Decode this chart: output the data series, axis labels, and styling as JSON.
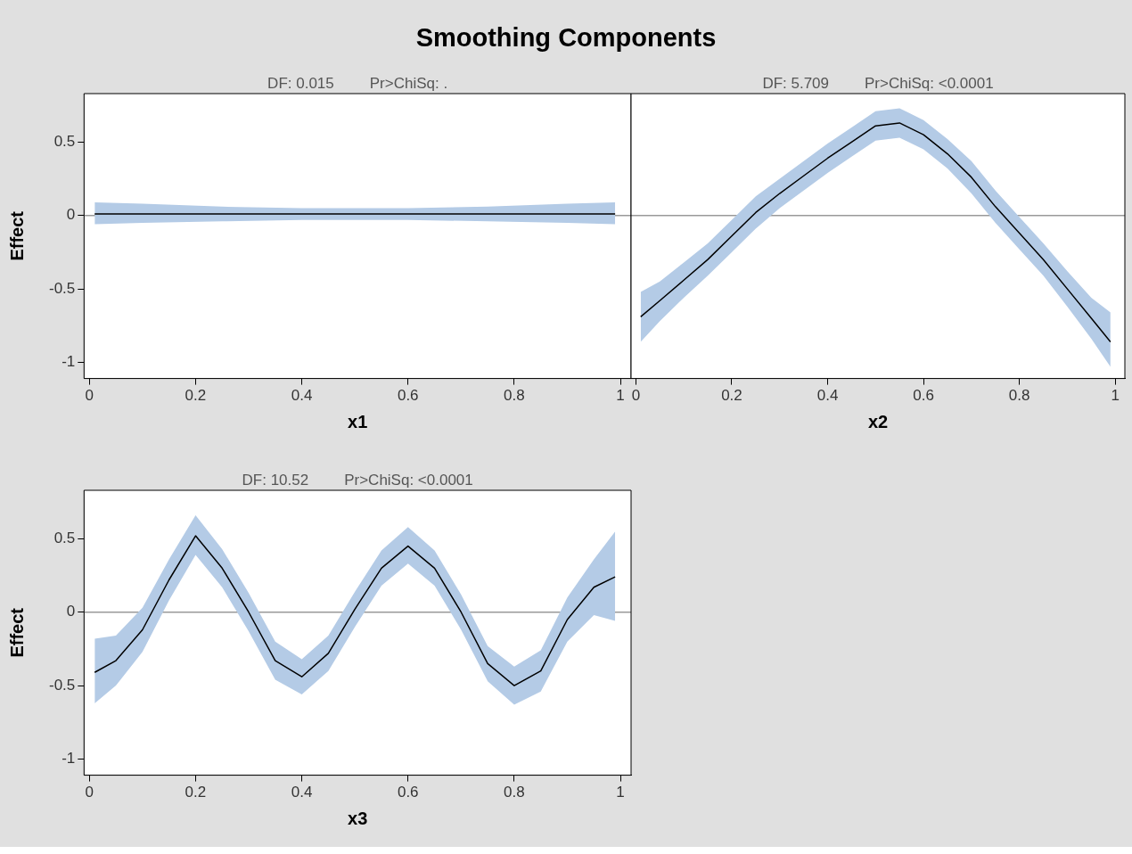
{
  "chart_data": [
    {
      "type": "line",
      "title": "Smoothing Components",
      "subtitle": "DF: 0.015",
      "annotations": [
        "Pr>ChiSq: ."
      ],
      "xlabel": "x1",
      "ylabel": "Effect",
      "x": [
        0.01,
        0.1,
        0.25,
        0.4,
        0.5,
        0.6,
        0.75,
        0.9,
        0.99
      ],
      "series": [
        {
          "color": "#000000",
          "values": [
            0.01,
            0.01,
            0.01,
            0.01,
            0.01,
            0.01,
            0.01,
            0.01,
            0.01
          ],
          "lower": [
            -0.06,
            -0.05,
            -0.04,
            -0.03,
            -0.03,
            -0.03,
            -0.04,
            -0.05,
            -0.06
          ],
          "upper": [
            0.09,
            0.08,
            0.06,
            0.05,
            0.05,
            0.05,
            0.06,
            0.08,
            0.09
          ]
        }
      ],
      "xlim": [
        -0.01,
        1.02
      ],
      "ylim": [
        -1.11,
        0.83
      ],
      "xticks": [
        0,
        0.2,
        0.4,
        0.6,
        0.8,
        1
      ],
      "yticks": [
        -1,
        -0.5,
        0,
        0.5
      ],
      "ref_lines": [
        {
          "axis": "y",
          "value": 0,
          "color": "#999999"
        }
      ]
    },
    {
      "type": "line",
      "subtitle": "DF: 5.709",
      "annotations": [
        "Pr>ChiSq: <0.0001"
      ],
      "xlabel": "x2",
      "x": [
        0.01,
        0.05,
        0.1,
        0.15,
        0.2,
        0.25,
        0.3,
        0.35,
        0.4,
        0.45,
        0.5,
        0.55,
        0.6,
        0.65,
        0.7,
        0.75,
        0.8,
        0.85,
        0.9,
        0.95,
        0.99
      ],
      "series": [
        {
          "color": "#000000",
          "values": [
            -0.69,
            -0.58,
            -0.44,
            -0.3,
            -0.14,
            0.02,
            0.15,
            0.27,
            0.39,
            0.5,
            0.61,
            0.63,
            0.55,
            0.42,
            0.26,
            0.06,
            -0.12,
            -0.3,
            -0.5,
            -0.7,
            -0.86
          ],
          "lower": [
            -0.86,
            -0.72,
            -0.56,
            -0.41,
            -0.25,
            -0.09,
            0.05,
            0.17,
            0.29,
            0.4,
            0.51,
            0.53,
            0.45,
            0.32,
            0.15,
            -0.05,
            -0.23,
            -0.41,
            -0.62,
            -0.84,
            -1.03
          ],
          "upper": [
            -0.52,
            -0.45,
            -0.32,
            -0.19,
            -0.03,
            0.13,
            0.25,
            0.37,
            0.49,
            0.6,
            0.71,
            0.73,
            0.65,
            0.52,
            0.37,
            0.17,
            -0.01,
            -0.19,
            -0.38,
            -0.56,
            -0.66
          ]
        }
      ],
      "xlim": [
        -0.01,
        1.02
      ],
      "ylim": [
        -1.11,
        0.83
      ],
      "xticks": [
        0,
        0.2,
        0.4,
        0.6,
        0.8,
        1
      ],
      "yticks": [
        -1,
        -0.5,
        0,
        0.5
      ],
      "ref_lines": [
        {
          "axis": "y",
          "value": 0,
          "color": "#999999"
        }
      ],
      "tick_labels": "x"
    },
    {
      "type": "line",
      "subtitle": "DF: 10.52",
      "annotations": [
        "Pr>ChiSq: <0.0001"
      ],
      "xlabel": "x3",
      "ylabel": "Effect",
      "x": [
        0.01,
        0.05,
        0.1,
        0.15,
        0.2,
        0.25,
        0.3,
        0.35,
        0.4,
        0.45,
        0.5,
        0.55,
        0.6,
        0.65,
        0.7,
        0.75,
        0.8,
        0.85,
        0.9,
        0.95,
        0.99
      ],
      "series": [
        {
          "color": "#000000",
          "values": [
            -0.41,
            -0.33,
            -0.12,
            0.22,
            0.52,
            0.3,
            0.0,
            -0.33,
            -0.44,
            -0.28,
            0.02,
            0.3,
            0.45,
            0.3,
            0.0,
            -0.35,
            -0.5,
            -0.4,
            -0.05,
            0.17,
            0.24
          ],
          "lower": [
            -0.62,
            -0.5,
            -0.27,
            0.08,
            0.39,
            0.17,
            -0.13,
            -0.46,
            -0.56,
            -0.4,
            -0.1,
            0.18,
            0.33,
            0.18,
            -0.12,
            -0.47,
            -0.63,
            -0.54,
            -0.2,
            -0.02,
            -0.06
          ],
          "upper": [
            -0.18,
            -0.16,
            0.03,
            0.36,
            0.66,
            0.43,
            0.13,
            -0.2,
            -0.32,
            -0.16,
            0.14,
            0.42,
            0.58,
            0.42,
            0.12,
            -0.23,
            -0.37,
            -0.26,
            0.1,
            0.36,
            0.55
          ]
        }
      ],
      "xlim": [
        -0.01,
        1.02
      ],
      "ylim": [
        -1.11,
        0.83
      ],
      "xticks": [
        0,
        0.2,
        0.4,
        0.6,
        0.8,
        1
      ],
      "yticks": [
        -1,
        -0.5,
        0,
        0.5
      ],
      "ref_lines": [
        {
          "axis": "y",
          "value": 0,
          "color": "#999999"
        }
      ]
    }
  ]
}
